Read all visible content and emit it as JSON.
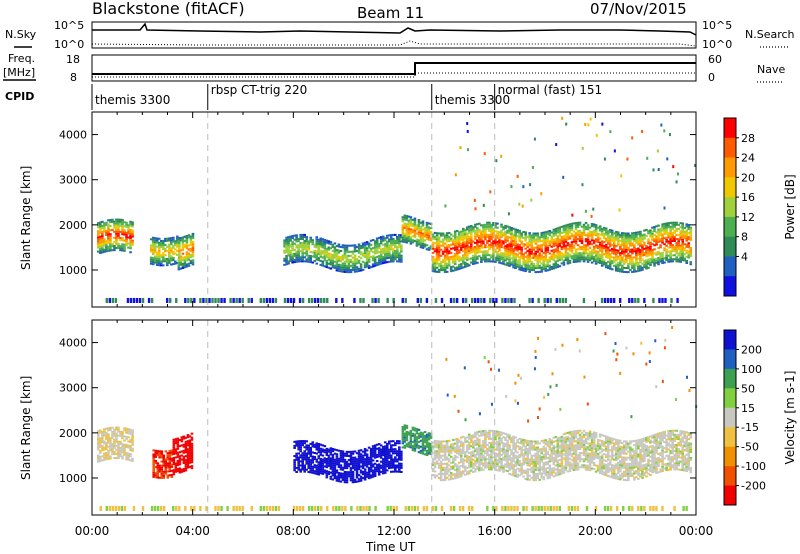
{
  "header": {
    "station": "Blackstone (fitACF)",
    "beam": "Beam 11",
    "date": "07/Nov/2015"
  },
  "strip_labels": {
    "nsky": "N.Sky",
    "nsearch": "N.Search",
    "freq_line1": "Freq.",
    "freq_line2": "[MHz]",
    "nave": "Nave",
    "cpid": "CPID",
    "noise_tick_high_left": "10^5",
    "noise_tick_low_left": "10^0",
    "noise_tick_high_right": "10^5",
    "noise_tick_low_right": "10^0",
    "freq_tick_high": "18",
    "freq_tick_low": "8",
    "nave_tick_high": "60",
    "nave_tick_low": "0"
  },
  "cpid_segments": [
    {
      "label": "themis 3300",
      "start_hour": 0.0
    },
    {
      "label": "rbsp CT-trig 220",
      "start_hour": 4.6
    },
    {
      "label": "themis 3300",
      "start_hour": 13.5
    },
    {
      "label": "normal (fast) 151",
      "start_hour": 16.0
    }
  ],
  "power_colorbar": {
    "label": "Power [dB]",
    "ticks": [
      "28",
      "24",
      "20",
      "16",
      "12",
      "8",
      "4"
    ],
    "colors": [
      "#ff0000",
      "#ff5a00",
      "#ff9a00",
      "#f0c800",
      "#a0d03c",
      "#4caf50",
      "#2e8b57",
      "#2060c0",
      "#1010e0"
    ]
  },
  "velocity_colorbar": {
    "label": "Velocity [m s-1]",
    "ticks": [
      "200",
      "100",
      "50",
      "15",
      "-15",
      "-50",
      "-100",
      "-200"
    ],
    "colors": [
      "#1010d0",
      "#1f5fc0",
      "#3ca050",
      "#80d040",
      "#c8c8c0",
      "#f0c040",
      "#f09000",
      "#f05000",
      "#f00000"
    ]
  },
  "y_axis_label": "Slant Range [km]",
  "x_axis_label": "Time UT",
  "chart_data": [
    {
      "type": "heatmap",
      "name": "Power",
      "y_ticks": [
        "1000",
        "2000",
        "3000",
        "4000"
      ],
      "x_ticks": [
        "00:00",
        "04:00",
        "08:00",
        "12:00",
        "16:00",
        "20:00",
        "00:00"
      ],
      "xlim_hours": [
        0,
        24
      ],
      "ylim_km": [
        180,
        4500
      ],
      "echo_bands": [
        {
          "from_hour": 0.2,
          "to_hour": 1.6,
          "center_km": 1650,
          "width_km": 700,
          "peak_db": 28
        },
        {
          "from_hour": 2.3,
          "to_hour": 3.5,
          "center_km": 1500,
          "width_km": 600,
          "peak_db": 20
        },
        {
          "from_hour": 3.4,
          "to_hour": 4.0,
          "center_km": 1400,
          "width_km": 700,
          "peak_db": 24
        },
        {
          "from_hour": 7.6,
          "to_hour": 12.3,
          "center_km": 1350,
          "width_km": 600,
          "peak_db": 16
        },
        {
          "from_hour": 12.3,
          "to_hour": 13.5,
          "center_km": 1800,
          "width_km": 600,
          "peak_db": 24
        },
        {
          "from_hour": 13.5,
          "to_hour": 23.8,
          "center_km": 1500,
          "width_km": 900,
          "peak_db": 28
        }
      ]
    },
    {
      "type": "heatmap",
      "name": "Velocity",
      "y_ticks": [
        "1000",
        "2000",
        "3000",
        "4000"
      ],
      "x_ticks": [
        "00:00",
        "04:00",
        "08:00",
        "12:00",
        "16:00",
        "20:00",
        "00:00"
      ],
      "xlim_hours": [
        0,
        24
      ],
      "ylim_km": [
        180,
        4500
      ],
      "echo_bands": [
        {
          "from_hour": 0.2,
          "to_hour": 1.6,
          "center_km": 1650,
          "width_km": 700,
          "velocity": -10
        },
        {
          "from_hour": 2.4,
          "to_hour": 3.2,
          "center_km": 1400,
          "width_km": 600,
          "velocity": -150
        },
        {
          "from_hour": 3.2,
          "to_hour": 4.0,
          "center_km": 1550,
          "width_km": 800,
          "velocity": -220
        },
        {
          "from_hour": 8.0,
          "to_hour": 12.3,
          "center_km": 1350,
          "width_km": 700,
          "velocity": 220
        },
        {
          "from_hour": 12.3,
          "to_hour": 13.5,
          "center_km": 1800,
          "width_km": 500,
          "velocity": 60
        },
        {
          "from_hour": 13.5,
          "to_hour": 23.8,
          "center_km": 1500,
          "width_km": 900,
          "velocity": 0
        }
      ]
    }
  ]
}
